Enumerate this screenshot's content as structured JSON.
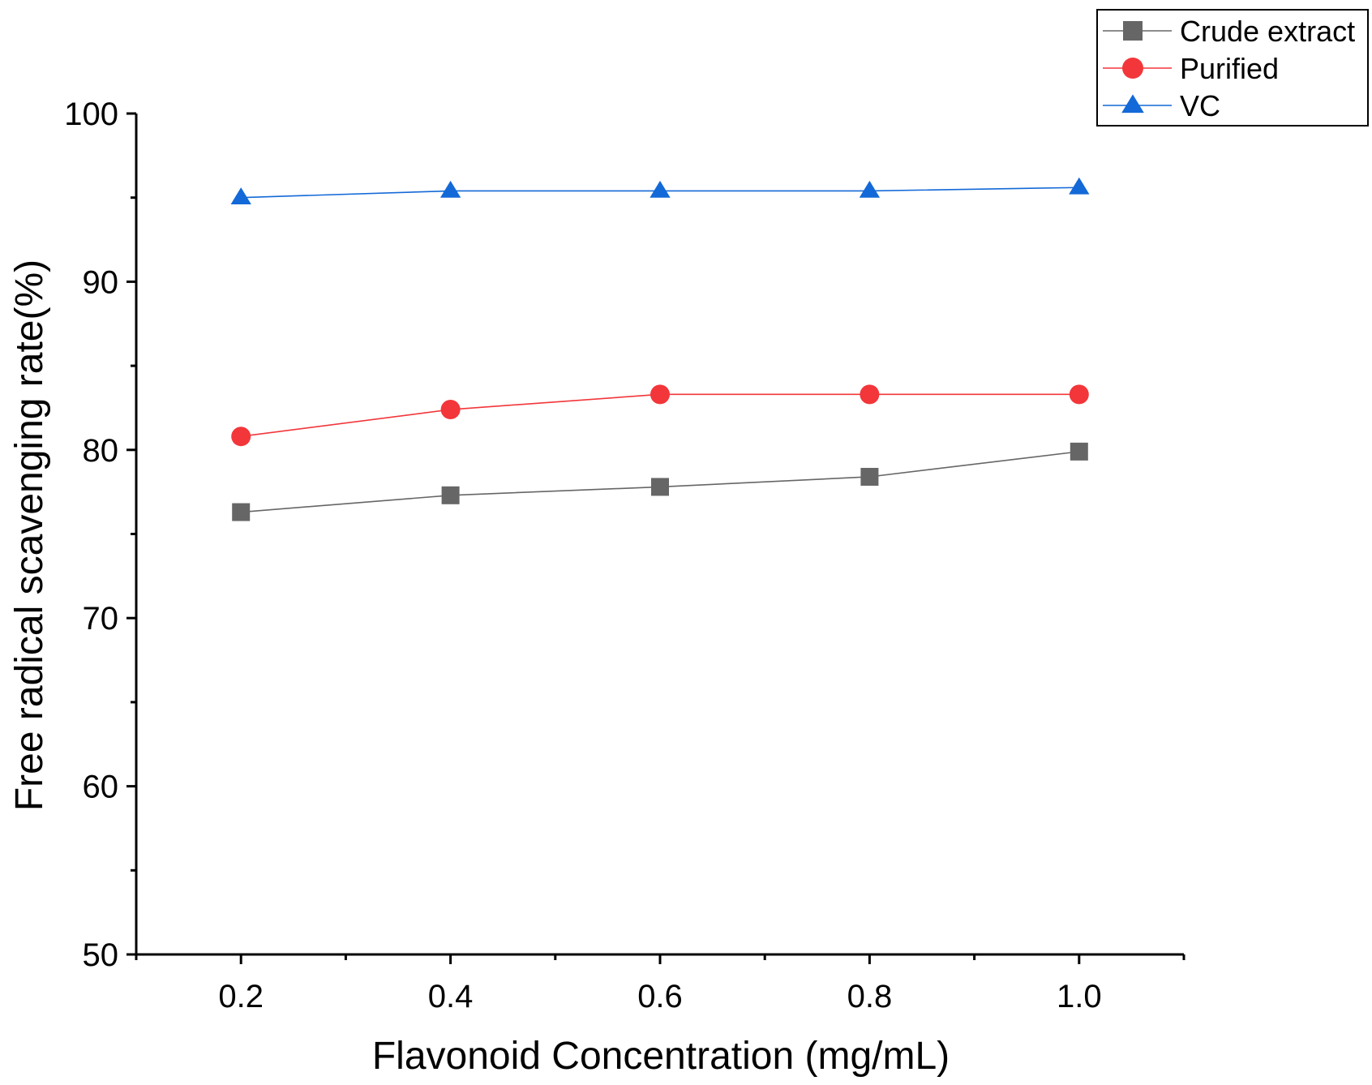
{
  "chart_data": {
    "type": "line",
    "title": "",
    "xlabel": "Flavonoid Concentration (mg/mL)",
    "ylabel": "Free radical scavenging rate(%)",
    "x": [
      0.2,
      0.4,
      0.6,
      0.8,
      1.0
    ],
    "xlim": [
      0.1,
      1.1
    ],
    "ylim": [
      50,
      100
    ],
    "x_ticks": [
      "0.2",
      "0.4",
      "0.6",
      "0.8",
      "1.0"
    ],
    "x_tick_values": [
      0.2,
      0.4,
      0.6,
      0.8,
      1.0
    ],
    "y_ticks": [
      "50",
      "60",
      "70",
      "80",
      "90",
      "100"
    ],
    "y_tick_values": [
      50,
      60,
      70,
      80,
      90,
      100
    ],
    "grid": false,
    "legend_position": "top-right",
    "series": [
      {
        "name": "Crude extract",
        "marker": "square",
        "color": "#666666",
        "values": [
          76.3,
          77.3,
          77.8,
          78.4,
          79.9
        ]
      },
      {
        "name": "Purified",
        "marker": "circle",
        "color": "#f2363a",
        "values": [
          80.8,
          82.4,
          83.3,
          83.3,
          83.3
        ]
      },
      {
        "name": "VC",
        "marker": "triangle",
        "color": "#1369d7",
        "values": [
          95.0,
          95.4,
          95.4,
          95.4,
          95.6
        ]
      }
    ]
  }
}
